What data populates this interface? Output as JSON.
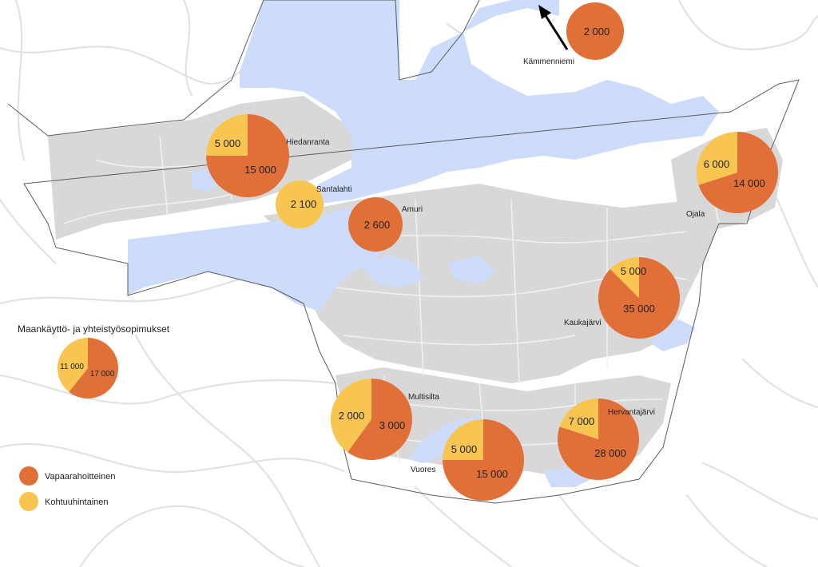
{
  "colors": {
    "water": "#cddcfa",
    "urban": "#d9d9d9",
    "road": "#e4e4e4",
    "boundary": "#555555",
    "free_financed": "#e07038",
    "moderate_price": "#f8c550",
    "pie_stroke": "#ffffff",
    "arrow": "#000000"
  },
  "legend": {
    "items": [
      {
        "label": "Vapaarahoitteinen",
        "color_key": "free_financed"
      },
      {
        "label": "Kohtuuhintainen",
        "color_key": "moderate_price"
      }
    ]
  },
  "map_data": {
    "areas": [
      {
        "name": "Kämmenniemi",
        "values": {
          "free_financed": 2000
        },
        "labels": {
          "free_financed": "2 000"
        },
        "has_arrow": true
      },
      {
        "name": "Hiedanranta",
        "values": {
          "moderate_price": 5000,
          "free_financed": 15000
        },
        "labels": {
          "moderate_price": "5 000",
          "free_financed": "15 000"
        }
      },
      {
        "name": "Santalahti",
        "values": {
          "moderate_price": 2100
        },
        "labels": {
          "moderate_price": "2 100"
        }
      },
      {
        "name": "Amuri",
        "values": {
          "free_financed": 2600
        },
        "labels": {
          "free_financed": "2 600"
        }
      },
      {
        "name": "Ojala",
        "values": {
          "moderate_price": 6000,
          "free_financed": 14000
        },
        "labels": {
          "moderate_price": "6 000",
          "free_financed": "14 000"
        }
      },
      {
        "name": "Kaukajärvi",
        "values": {
          "moderate_price": 5000,
          "free_financed": 35000
        },
        "labels": {
          "moderate_price": "5 000",
          "free_financed": "35 000"
        }
      },
      {
        "name": "Multisilta",
        "values": {
          "moderate_price": 2000,
          "free_financed": 3000
        },
        "labels": {
          "moderate_price": "2 000",
          "free_financed": "3 000"
        }
      },
      {
        "name": "Vuores",
        "values": {
          "moderate_price": 5000,
          "free_financed": 15000
        },
        "labels": {
          "moderate_price": "5 000",
          "free_financed": "15 000"
        }
      },
      {
        "name": "Hervantajärvi",
        "values": {
          "moderate_price": 7000,
          "free_financed": 28000
        },
        "labels": {
          "moderate_price": "7 000",
          "free_financed": "28 000"
        }
      },
      {
        "name": "Maankäyttö- ja yhteistyösopimukset",
        "values": {
          "moderate_price": 11000,
          "free_financed": 17000
        },
        "labels": {
          "moderate_price": "11 000",
          "free_financed": "17 000"
        },
        "is_legend_pie": true
      }
    ]
  }
}
